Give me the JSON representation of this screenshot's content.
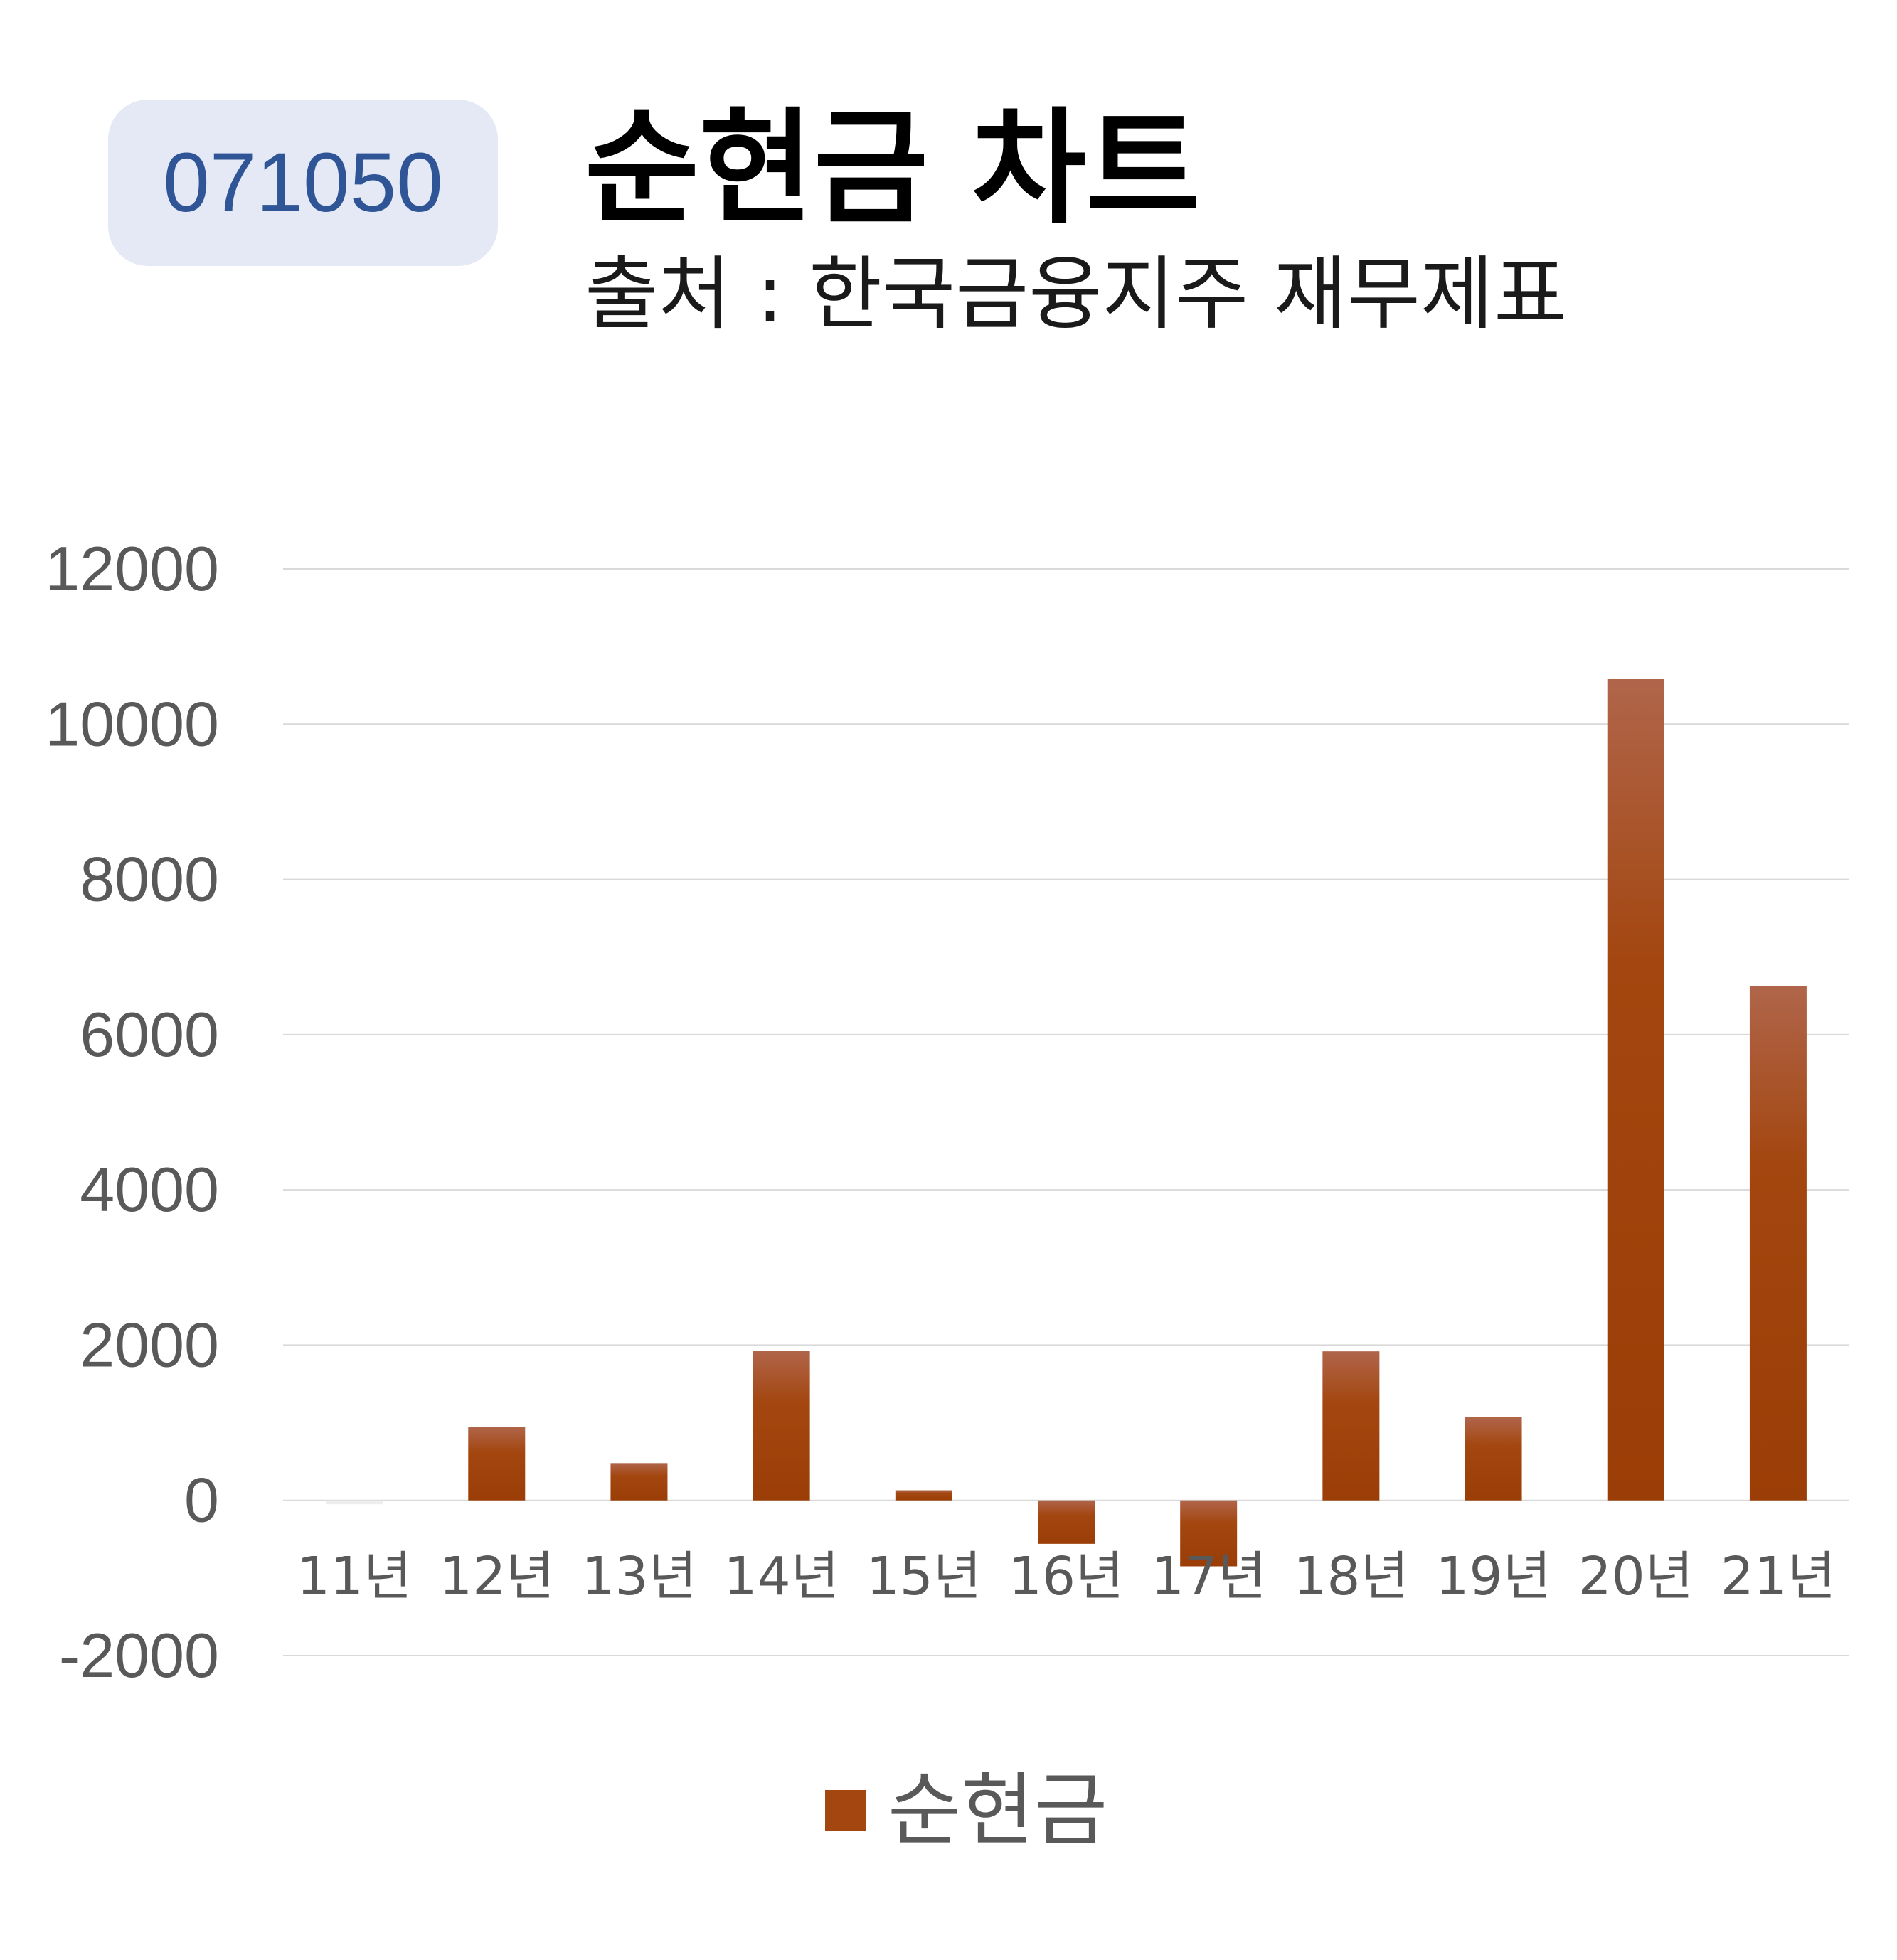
{
  "badge": {
    "code": "071050"
  },
  "header": {
    "title": "순현금 차트",
    "subtitle": "출처 : 한국금융지주 재무제표"
  },
  "colors": {
    "bar": "#a3460f",
    "bar_top": "#b0654a",
    "grid": "#d9d9d9",
    "axis_text": "#595959"
  },
  "chart_data": {
    "type": "bar",
    "categories": [
      "11년",
      "12년",
      "13년",
      "14년",
      "15년",
      "16년",
      "17년",
      "18년",
      "19년",
      "20년",
      "21년"
    ],
    "series": [
      {
        "name": "순현금",
        "values": [
          -50,
          950,
          480,
          1930,
          130,
          -560,
          -850,
          1920,
          1070,
          10580,
          6630
        ]
      }
    ],
    "yticks": [
      "12000",
      "10000",
      "8000",
      "6000",
      "4000",
      "2000",
      "0",
      "-2000"
    ],
    "ylim": [
      -2000,
      12000
    ],
    "grid": true,
    "legend": "bottom"
  }
}
